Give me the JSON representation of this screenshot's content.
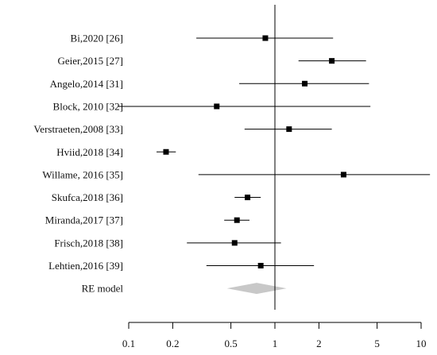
{
  "chart_data": {
    "type": "forest",
    "title": "",
    "xlabel": "",
    "ylabel": "",
    "x_scale": "log",
    "xlim": [
      0.1,
      10
    ],
    "x_ticks": [
      0.1,
      0.2,
      0.5,
      1,
      2,
      5,
      10
    ],
    "x_tick_labels": [
      "0.1",
      "0.2",
      "0.5",
      "1",
      "2",
      "5",
      "10"
    ],
    "reference_line": 1,
    "studies": [
      {
        "label": "Bi,2020 [26]",
        "estimate": 0.86,
        "lower": 0.29,
        "upper": 2.5
      },
      {
        "label": "Geier,2015 [27]",
        "estimate": 2.45,
        "lower": 1.45,
        "upper": 4.2
      },
      {
        "label": "Angelo,2014 [31]",
        "estimate": 1.6,
        "lower": 0.57,
        "upper": 4.4
      },
      {
        "label": "Block, 2010 [32]",
        "estimate": 0.4,
        "lower": 0.085,
        "upper": 4.5
      },
      {
        "label": "Verstraeten,2008 [33]",
        "estimate": 1.25,
        "lower": 0.62,
        "upper": 2.45
      },
      {
        "label": "Hviid,2018 [34]",
        "estimate": 0.18,
        "lower": 0.155,
        "upper": 0.21
      },
      {
        "label": "Willame, 2016 [35]",
        "estimate": 2.95,
        "lower": 0.3,
        "upper": 11.5
      },
      {
        "label": "Skufca,2018 [36]",
        "estimate": 0.65,
        "lower": 0.53,
        "upper": 0.8
      },
      {
        "label": "Miranda,2017 [37]",
        "estimate": 0.55,
        "lower": 0.45,
        "upper": 0.67
      },
      {
        "label": "Frisch,2018 [38]",
        "estimate": 0.53,
        "lower": 0.25,
        "upper": 1.1
      },
      {
        "label": "Lehtien,2016 [39]",
        "estimate": 0.8,
        "lower": 0.34,
        "upper": 1.85
      }
    ],
    "summary": {
      "label": "RE model",
      "estimate": 0.75,
      "lower": 0.47,
      "upper": 1.2
    },
    "colors": {
      "line": "#000000",
      "marker": "#000000",
      "diamond": "#c8c8c8"
    }
  }
}
